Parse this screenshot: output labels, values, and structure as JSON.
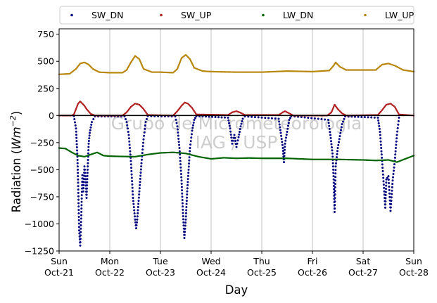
{
  "chart_data": {
    "type": "scatter",
    "xlabel": "Day",
    "ylabel": "Radiation (Wm⁻²)",
    "ylabel_base": "Radiation (",
    "ylabel_unit": "Wm",
    "ylabel_exp": "−2",
    "ylabel_close": ")",
    "ylim": [
      -1250,
      800
    ],
    "xlim": [
      "2018-10-21",
      "2018-10-28"
    ],
    "yticks": [
      -1250,
      -1000,
      -750,
      -500,
      -250,
      0,
      250,
      500,
      750
    ],
    "ytick_labels": [
      "−1250",
      "−1000",
      "−750",
      "−500",
      "−250",
      "0",
      "250",
      "500",
      "750"
    ],
    "xticks": [
      {
        "date": "2018-10-21",
        "day": "Sun",
        "date_label": "Oct-21"
      },
      {
        "date": "2018-10-22",
        "day": "Mon",
        "date_label": "Oct-22"
      },
      {
        "date": "2018-10-23",
        "day": "Tue",
        "date_label": "Oct-23"
      },
      {
        "date": "2018-10-24",
        "day": "Wed",
        "date_label": "Oct-24"
      },
      {
        "date": "2018-10-25",
        "day": "Thu",
        "date_label": "Oct-25"
      },
      {
        "date": "2018-10-26",
        "day": "Fri",
        "date_label": "Oct-26"
      },
      {
        "date": "2018-10-27",
        "day": "Sat",
        "date_label": "Oct-27"
      },
      {
        "date": "2018-10-28",
        "day": "Sun",
        "date_label": "Oct-28"
      }
    ],
    "grid": "vertical",
    "legend_position": "top",
    "watermark": [
      "Grupo de Micrometeorologia",
      "IAG / USP"
    ],
    "series": [
      {
        "name": "SW_DN",
        "color": "#00007f",
        "points": [
          [
            "2018-10-21T07:00",
            -5
          ],
          [
            "2018-10-21T08:00",
            -120
          ],
          [
            "2018-10-21T08:40",
            -380
          ],
          [
            "2018-10-21T09:00",
            -620
          ],
          [
            "2018-10-21T09:30",
            -1060
          ],
          [
            "2018-10-21T10:00",
            -1200
          ],
          [
            "2018-10-21T10:30",
            -920
          ],
          [
            "2018-10-21T11:00",
            -550
          ],
          [
            "2018-10-21T11:30",
            -700
          ],
          [
            "2018-10-21T12:00",
            -470
          ],
          [
            "2018-10-21T12:30",
            -560
          ],
          [
            "2018-10-21T13:00",
            -760
          ],
          [
            "2018-10-21T13:30",
            -500
          ],
          [
            "2018-10-21T14:00",
            -260
          ],
          [
            "2018-10-21T14:30",
            -160
          ],
          [
            "2018-10-21T15:30",
            -60
          ],
          [
            "2018-10-21T17:00",
            -8
          ],
          [
            "2018-10-22T07:00",
            -8
          ],
          [
            "2018-10-22T08:00",
            -60
          ],
          [
            "2018-10-22T09:00",
            -180
          ],
          [
            "2018-10-22T10:00",
            -420
          ],
          [
            "2018-10-22T11:00",
            -760
          ],
          [
            "2018-10-22T12:00",
            -960
          ],
          [
            "2018-10-22T12:30",
            -1040
          ],
          [
            "2018-10-22T13:00",
            -960
          ],
          [
            "2018-10-22T14:00",
            -700
          ],
          [
            "2018-10-22T15:00",
            -440
          ],
          [
            "2018-10-22T16:00",
            -220
          ],
          [
            "2018-10-22T17:00",
            -60
          ],
          [
            "2018-10-22T18:00",
            -5
          ],
          [
            "2018-10-23T07:00",
            -8
          ],
          [
            "2018-10-23T08:00",
            -100
          ],
          [
            "2018-10-23T09:00",
            -300
          ],
          [
            "2018-10-23T10:00",
            -600
          ],
          [
            "2018-10-23T10:40",
            -900
          ],
          [
            "2018-10-23T11:20",
            -1130
          ],
          [
            "2018-10-23T12:00",
            -960
          ],
          [
            "2018-10-23T12:40",
            -700
          ],
          [
            "2018-10-23T13:20",
            -500
          ],
          [
            "2018-10-23T14:00",
            -300
          ],
          [
            "2018-10-23T15:00",
            -140
          ],
          [
            "2018-10-23T16:00",
            -40
          ],
          [
            "2018-10-23T17:00",
            -5
          ],
          [
            "2018-10-24T08:00",
            -20
          ],
          [
            "2018-10-24T09:00",
            -120
          ],
          [
            "2018-10-24T10:00",
            -260
          ],
          [
            "2018-10-24T11:00",
            -180
          ],
          [
            "2018-10-24T12:00",
            -290
          ],
          [
            "2018-10-24T13:00",
            -200
          ],
          [
            "2018-10-24T14:00",
            -100
          ],
          [
            "2018-10-24T15:00",
            -30
          ],
          [
            "2018-10-24T16:00",
            -8
          ],
          [
            "2018-10-25T08:00",
            -30
          ],
          [
            "2018-10-25T09:00",
            -160
          ],
          [
            "2018-10-25T10:00",
            -300
          ],
          [
            "2018-10-25T10:30",
            -430
          ],
          [
            "2018-10-25T11:00",
            -260
          ],
          [
            "2018-10-25T12:00",
            -150
          ],
          [
            "2018-10-25T13:00",
            -40
          ],
          [
            "2018-10-25T14:00",
            -5
          ],
          [
            "2018-10-26T07:30",
            -40
          ],
          [
            "2018-10-26T08:30",
            -180
          ],
          [
            "2018-10-26T09:30",
            -350
          ],
          [
            "2018-10-26T10:00",
            -560
          ],
          [
            "2018-10-26T10:30",
            -890
          ],
          [
            "2018-10-26T11:00",
            -470
          ],
          [
            "2018-10-26T12:00",
            -300
          ],
          [
            "2018-10-26T13:00",
            -190
          ],
          [
            "2018-10-26T14:00",
            -80
          ],
          [
            "2018-10-26T15:30",
            -8
          ],
          [
            "2018-10-27T07:00",
            -20
          ],
          [
            "2018-10-27T08:00",
            -150
          ],
          [
            "2018-10-27T09:00",
            -420
          ],
          [
            "2018-10-27T10:00",
            -700
          ],
          [
            "2018-10-27T10:30",
            -850
          ],
          [
            "2018-10-27T11:00",
            -590
          ],
          [
            "2018-10-27T12:00",
            -560
          ],
          [
            "2018-10-27T13:00",
            -880
          ],
          [
            "2018-10-27T14:00",
            -600
          ],
          [
            "2018-10-27T15:00",
            -420
          ],
          [
            "2018-10-27T16:00",
            -180
          ],
          [
            "2018-10-27T17:00",
            -20
          ]
        ]
      },
      {
        "name": "SW_UP",
        "color": "#b22222",
        "points": [
          [
            "2018-10-21T00:00",
            0
          ],
          [
            "2018-10-21T06:00",
            0
          ],
          [
            "2018-10-21T07:00",
            10
          ],
          [
            "2018-10-21T08:00",
            60
          ],
          [
            "2018-10-21T09:00",
            110
          ],
          [
            "2018-10-21T10:00",
            130
          ],
          [
            "2018-10-21T11:00",
            110
          ],
          [
            "2018-10-21T12:00",
            90
          ],
          [
            "2018-10-21T13:00",
            60
          ],
          [
            "2018-10-21T15:00",
            15
          ],
          [
            "2018-10-21T17:00",
            0
          ],
          [
            "2018-10-22T06:00",
            0
          ],
          [
            "2018-10-22T08:00",
            30
          ],
          [
            "2018-10-22T10:00",
            80
          ],
          [
            "2018-10-22T12:00",
            110
          ],
          [
            "2018-10-22T14:00",
            100
          ],
          [
            "2018-10-22T16:00",
            60
          ],
          [
            "2018-10-22T18:00",
            5
          ],
          [
            "2018-10-23T06:00",
            0
          ],
          [
            "2018-10-23T08:00",
            40
          ],
          [
            "2018-10-23T10:00",
            90
          ],
          [
            "2018-10-23T11:30",
            120
          ],
          [
            "2018-10-23T13:00",
            110
          ],
          [
            "2018-10-23T15:00",
            70
          ],
          [
            "2018-10-23T17:00",
            10
          ],
          [
            "2018-10-24T08:00",
            5
          ],
          [
            "2018-10-24T10:00",
            30
          ],
          [
            "2018-10-24T12:00",
            40
          ],
          [
            "2018-10-24T14:00",
            25
          ],
          [
            "2018-10-24T16:00",
            5
          ],
          [
            "2018-10-25T08:00",
            5
          ],
          [
            "2018-10-25T10:00",
            30
          ],
          [
            "2018-10-25T11:00",
            40
          ],
          [
            "2018-10-25T13:00",
            20
          ],
          [
            "2018-10-25T15:00",
            0
          ],
          [
            "2018-10-26T07:00",
            0
          ],
          [
            "2018-10-26T09:00",
            30
          ],
          [
            "2018-10-26T10:30",
            100
          ],
          [
            "2018-10-26T12:00",
            60
          ],
          [
            "2018-10-26T14:00",
            20
          ],
          [
            "2018-10-26T16:00",
            0
          ],
          [
            "2018-10-27T07:00",
            5
          ],
          [
            "2018-10-27T09:00",
            50
          ],
          [
            "2018-10-27T11:00",
            100
          ],
          [
            "2018-10-27T13:00",
            110
          ],
          [
            "2018-10-27T15:00",
            80
          ],
          [
            "2018-10-27T17:00",
            10
          ],
          [
            "2018-10-28T00:00",
            0
          ]
        ]
      },
      {
        "name": "LW_DN",
        "color": "#006400",
        "points": [
          [
            "2018-10-21T00:00",
            -300
          ],
          [
            "2018-10-21T03:00",
            -305
          ],
          [
            "2018-10-21T06:00",
            -340
          ],
          [
            "2018-10-21T09:00",
            -370
          ],
          [
            "2018-10-21T12:00",
            -380
          ],
          [
            "2018-10-21T15:00",
            -360
          ],
          [
            "2018-10-21T18:00",
            -340
          ],
          [
            "2018-10-21T21:00",
            -370
          ],
          [
            "2018-10-22T00:00",
            -375
          ],
          [
            "2018-10-22T06:00",
            -378
          ],
          [
            "2018-10-22T12:00",
            -380
          ],
          [
            "2018-10-22T18:00",
            -360
          ],
          [
            "2018-10-23T00:00",
            -345
          ],
          [
            "2018-10-23T06:00",
            -340
          ],
          [
            "2018-10-23T12:00",
            -350
          ],
          [
            "2018-10-23T18:00",
            -380
          ],
          [
            "2018-10-24T00:00",
            -400
          ],
          [
            "2018-10-24T06:00",
            -390
          ],
          [
            "2018-10-24T12:00",
            -395
          ],
          [
            "2018-10-24T18:00",
            -392
          ],
          [
            "2018-10-25T00:00",
            -395
          ],
          [
            "2018-10-25T12:00",
            -395
          ],
          [
            "2018-10-26T00:00",
            -405
          ],
          [
            "2018-10-26T12:00",
            -405
          ],
          [
            "2018-10-27T00:00",
            -410
          ],
          [
            "2018-10-27T06:00",
            -415
          ],
          [
            "2018-10-27T12:00",
            -410
          ],
          [
            "2018-10-27T16:00",
            -430
          ],
          [
            "2018-10-27T20:00",
            -400
          ],
          [
            "2018-10-28T00:00",
            -370
          ]
        ]
      },
      {
        "name": "LW_UP",
        "color": "#b8860b",
        "points": [
          [
            "2018-10-21T00:00",
            380
          ],
          [
            "2018-10-21T05:00",
            385
          ],
          [
            "2018-10-21T08:00",
            430
          ],
          [
            "2018-10-21T10:00",
            480
          ],
          [
            "2018-10-21T12:00",
            490
          ],
          [
            "2018-10-21T14:00",
            470
          ],
          [
            "2018-10-21T16:00",
            430
          ],
          [
            "2018-10-21T19:00",
            400
          ],
          [
            "2018-10-22T00:00",
            395
          ],
          [
            "2018-10-22T06:00",
            395
          ],
          [
            "2018-10-22T08:00",
            420
          ],
          [
            "2018-10-22T10:00",
            490
          ],
          [
            "2018-10-22T12:00",
            550
          ],
          [
            "2018-10-22T14:00",
            520
          ],
          [
            "2018-10-22T16:00",
            430
          ],
          [
            "2018-10-22T20:00",
            400
          ],
          [
            "2018-10-23T00:00",
            400
          ],
          [
            "2018-10-23T06:00",
            395
          ],
          [
            "2018-10-23T08:00",
            430
          ],
          [
            "2018-10-23T10:00",
            530
          ],
          [
            "2018-10-23T12:00",
            560
          ],
          [
            "2018-10-23T14:00",
            520
          ],
          [
            "2018-10-23T16:00",
            440
          ],
          [
            "2018-10-23T20:00",
            410
          ],
          [
            "2018-10-24T00:00",
            405
          ],
          [
            "2018-10-24T12:00",
            400
          ],
          [
            "2018-10-25T00:00",
            400
          ],
          [
            "2018-10-25T12:00",
            410
          ],
          [
            "2018-10-26T00:00",
            405
          ],
          [
            "2018-10-26T08:00",
            415
          ],
          [
            "2018-10-26T10:00",
            460
          ],
          [
            "2018-10-26T11:00",
            490
          ],
          [
            "2018-10-26T13:00",
            450
          ],
          [
            "2018-10-26T16:00",
            420
          ],
          [
            "2018-10-27T00:00",
            420
          ],
          [
            "2018-10-27T06:00",
            420
          ],
          [
            "2018-10-27T09:00",
            470
          ],
          [
            "2018-10-27T12:00",
            480
          ],
          [
            "2018-10-27T15:00",
            460
          ],
          [
            "2018-10-27T19:00",
            420
          ],
          [
            "2018-10-28T00:00",
            405
          ]
        ]
      }
    ]
  }
}
